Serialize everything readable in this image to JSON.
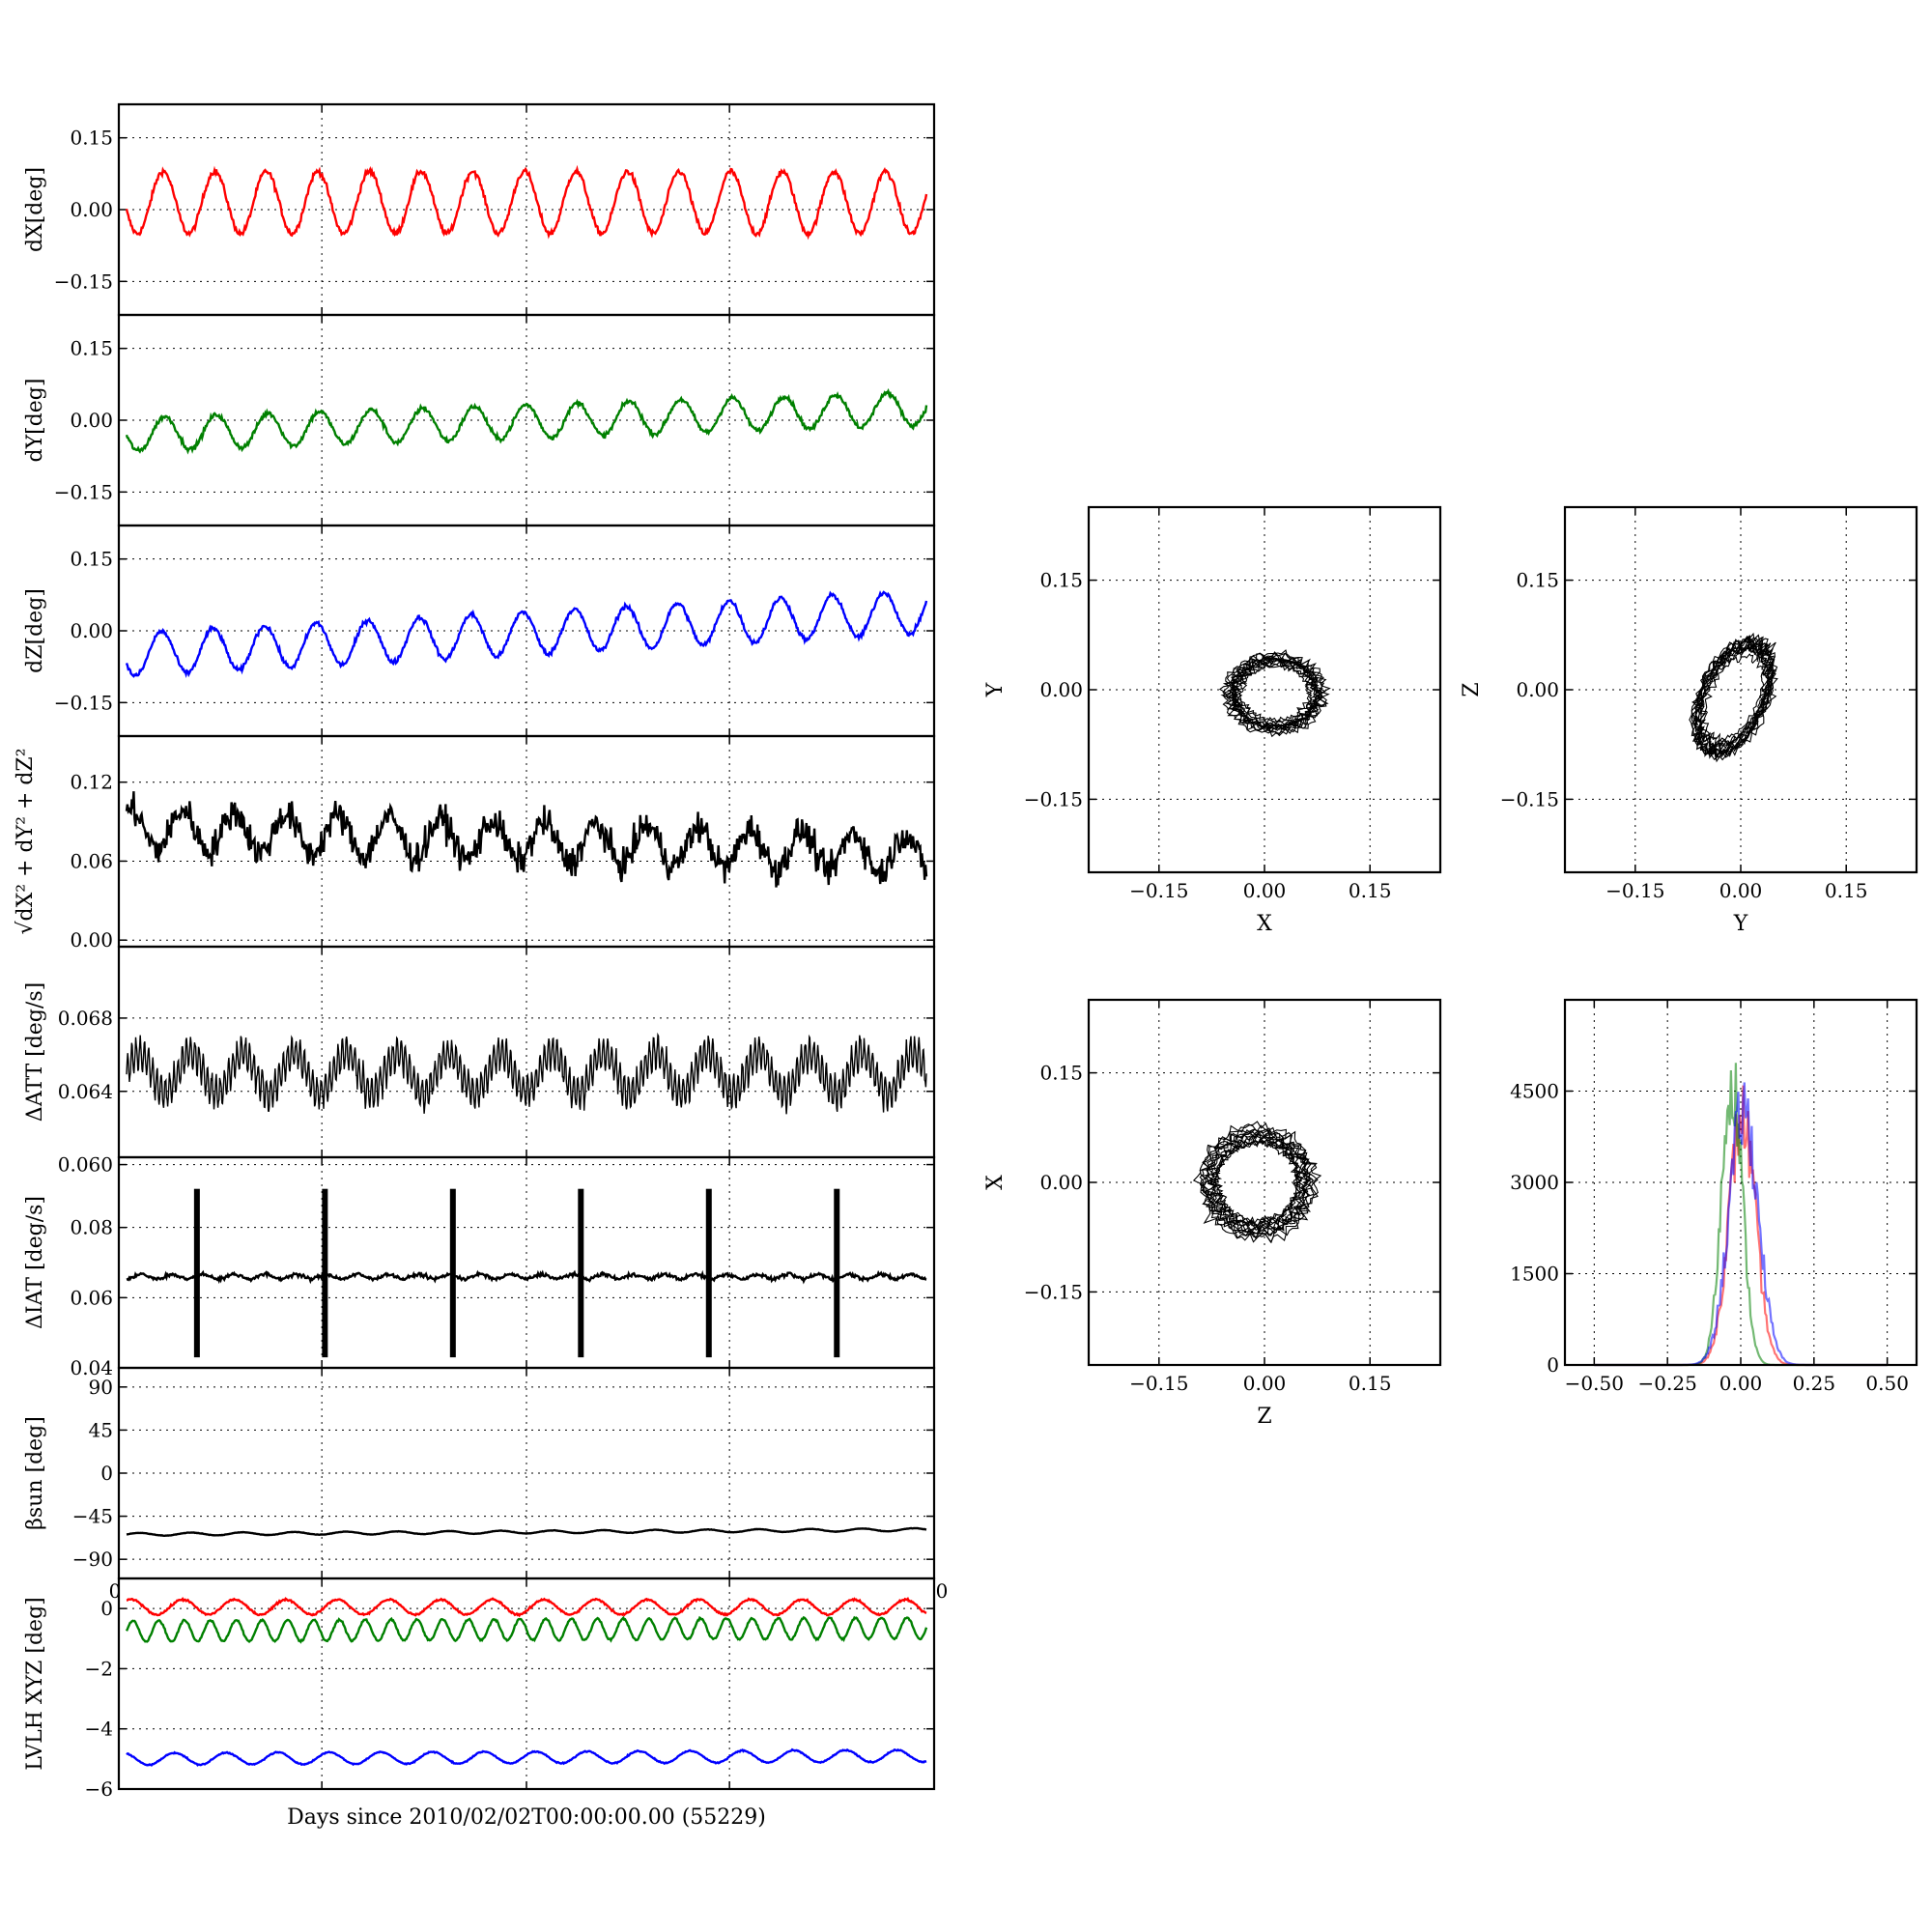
{
  "figure": {
    "xlabel": "Days since 2010/02/02T00:00:00.00 (55229)"
  },
  "colors": {
    "x": "#ff0000",
    "y": "#008000",
    "z": "#0000ff",
    "k": "#000000"
  },
  "chart_data": [
    {
      "type": "line",
      "id": "dX",
      "ylabel": "dX[deg]",
      "ylim": [
        -0.22,
        0.22
      ],
      "yticks": [
        "0.15",
        "0.00",
        "−0.15"
      ],
      "ytick_values": [
        0.15,
        0.0,
        -0.15
      ],
      "grid": true,
      "series": [
        {
          "color": "#ff0000",
          "kind": "sine",
          "cycles": 15.5,
          "offset": 0.015,
          "amp": 0.065,
          "trend": 0.0,
          "noise": 0.006,
          "phase": 3.4
        }
      ]
    },
    {
      "type": "line",
      "id": "dY",
      "ylabel": "dY[deg]",
      "ylim": [
        -0.22,
        0.22
      ],
      "yticks": [
        "0.15",
        "0.00",
        "−0.15"
      ],
      "ytick_values": [
        0.15,
        0.0,
        -0.15
      ],
      "grid": true,
      "series": [
        {
          "color": "#008000",
          "kind": "sine",
          "cycles": 15.5,
          "offset": -0.03,
          "amp": 0.035,
          "trend": 0.055,
          "noise": 0.005,
          "phase": 3.2
        }
      ]
    },
    {
      "type": "line",
      "id": "dZ",
      "ylabel": "dZ[deg]",
      "ylim": [
        -0.22,
        0.22
      ],
      "yticks": [
        "0.15",
        "0.00",
        "−0.15"
      ],
      "ytick_values": [
        0.15,
        0.0,
        -0.15
      ],
      "grid": true,
      "series": [
        {
          "color": "#0000ff",
          "kind": "sine",
          "cycles": 15.5,
          "offset": -0.05,
          "amp": 0.045,
          "trend": 0.09,
          "noise": 0.005,
          "phase": 3.6
        }
      ]
    },
    {
      "type": "line",
      "id": "dR",
      "ylabel": "√dX² + dY² + dZ²",
      "ylim": [
        -0.005,
        0.155
      ],
      "yticks": [
        "0.12",
        "0.06",
        "0.00"
      ],
      "ytick_values": [
        0.12,
        0.06,
        0.0
      ],
      "grid": true,
      "series": [
        {
          "color": "#000000",
          "kind": "sine",
          "cycles": 15.5,
          "offset": 0.085,
          "amp": 0.015,
          "trend": -0.02,
          "noise": 0.012,
          "phase": 1.0
        }
      ]
    },
    {
      "type": "line",
      "id": "dATT",
      "ylabel": "ΔATT [deg/s]",
      "ylim": [
        0.0604,
        0.0719
      ],
      "yticks": [
        "0.068",
        "0.064",
        "0.060"
      ],
      "ytick_values": [
        0.068,
        0.064,
        0.06
      ],
      "grid": true,
      "series": [
        {
          "color": "#000000",
          "kind": "fast",
          "cycles": 15.5,
          "offset": 0.065,
          "amp": 0.0011,
          "fast_amp": 0.001,
          "trend": 0.0,
          "noise": 0.0003,
          "phase": 0.0
        }
      ]
    },
    {
      "type": "line",
      "id": "dIAT",
      "ylabel": "ΔIAT [deg/s]",
      "ylim": [
        0.04,
        0.1
      ],
      "yticks": [
        "0.08",
        "0.06",
        "0.04"
      ],
      "ytick_values": [
        0.08,
        0.06,
        0.04
      ],
      "grid": true,
      "series": [
        {
          "color": "#000000",
          "kind": "saw",
          "cycles": 26,
          "offset": 0.066,
          "amp": 0.0016,
          "trend": 0.0,
          "noise": 0.0005,
          "phase": 0.0,
          "spikes_at": [
            0.088,
            0.248,
            0.408,
            0.568,
            0.728,
            0.888
          ],
          "spike_range": [
            0.043,
            0.091
          ]
        }
      ]
    },
    {
      "type": "line",
      "id": "beta",
      "ylabel": "βsun [deg]",
      "ylim": [
        -110,
        110
      ],
      "yticks": [
        "90",
        "45",
        "0",
        "−45",
        "−90"
      ],
      "ytick_values": [
        90,
        45,
        0,
        -45,
        -90
      ],
      "grid": true,
      "series": [
        {
          "color": "#000000",
          "kind": "sine",
          "cycles": 15.5,
          "offset": -64,
          "amp": 1.5,
          "trend": 5,
          "noise": 0.2,
          "phase": 0.0
        }
      ]
    },
    {
      "type": "line",
      "id": "lvlh",
      "ylabel": "LVLH XYZ [deg]",
      "ylim": [
        -6,
        1
      ],
      "yticks": [
        "0",
        "−2",
        "−4",
        "−6"
      ],
      "ytick_values": [
        0,
        -2,
        -4,
        -6
      ],
      "xticks_bottom": [],
      "xtick_corner_labels": [
        "0",
        "0"
      ],
      "grid": true,
      "series": [
        {
          "color": "#ff0000",
          "kind": "sine",
          "cycles": 15.5,
          "offset": 0.05,
          "amp": 0.25,
          "trend": 0.0,
          "noise": 0.03,
          "phase": 1.0
        },
        {
          "color": "#008000",
          "kind": "sine",
          "cycles": 31,
          "offset": -0.75,
          "amp": 0.35,
          "trend": 0.1,
          "noise": 0.03,
          "phase": 0.0
        },
        {
          "color": "#0000ff",
          "kind": "sine",
          "cycles": 15.5,
          "offset": -5.0,
          "amp": 0.2,
          "trend": 0.1,
          "noise": 0.02,
          "phase": 2.0
        }
      ]
    },
    {
      "type": "scatter",
      "id": "XY",
      "xlabel": "X",
      "ylabel": "Y",
      "xlim": [
        -0.25,
        0.25
      ],
      "ylim": [
        -0.25,
        0.25
      ],
      "xticks": [
        "−0.15",
        "0.00",
        "0.15"
      ],
      "yticks": [
        "0.15",
        "0.00",
        "−0.15"
      ],
      "tick_values": [
        -0.15,
        0.0,
        0.15
      ],
      "grid": true,
      "color": "#000000",
      "cloud": {
        "cx": 0.015,
        "cy": -0.005,
        "rx": 0.065,
        "ry": 0.05,
        "tilt": 0.0
      }
    },
    {
      "type": "scatter",
      "id": "YZ",
      "xlabel": "Y",
      "ylabel": "Z",
      "xlim": [
        -0.25,
        0.25
      ],
      "ylim": [
        -0.25,
        0.25
      ],
      "xticks": [
        "−0.15",
        "0.00",
        "0.15"
      ],
      "yticks": [
        "0.15",
        "0.00",
        "−0.15"
      ],
      "tick_values": [
        -0.15,
        0.0,
        0.15
      ],
      "grid": true,
      "color": "#000000",
      "cloud": {
        "cx": -0.01,
        "cy": -0.01,
        "rx": 0.045,
        "ry": 0.08,
        "tilt": -0.45
      }
    },
    {
      "type": "scatter",
      "id": "ZX",
      "xlabel": "Z",
      "ylabel": "X",
      "xlim": [
        -0.25,
        0.25
      ],
      "ylim": [
        -0.25,
        0.25
      ],
      "xticks": [
        "−0.15",
        "0.00",
        "0.15"
      ],
      "yticks": [
        "0.15",
        "0.00",
        "−0.15"
      ],
      "tick_values": [
        -0.15,
        0.0,
        0.15
      ],
      "grid": true,
      "color": "#000000",
      "cloud": {
        "cx": -0.01,
        "cy": 0.0,
        "rx": 0.075,
        "ry": 0.07,
        "tilt": 0.0
      }
    },
    {
      "type": "histogram",
      "id": "hist",
      "xlim": [
        -0.6,
        0.6
      ],
      "ylim": [
        0,
        6000
      ],
      "xticks": [
        "−0.50",
        "−0.25",
        "0.00",
        "0.25",
        "0.50"
      ],
      "xtick_values": [
        -0.5,
        -0.25,
        0.0,
        0.25,
        0.5
      ],
      "yticks": [
        "4500",
        "3000",
        "1500",
        "0"
      ],
      "ytick_values": [
        4500,
        3000,
        1500,
        0
      ],
      "grid": true,
      "series": [
        {
          "color": "#ff0000",
          "center": 0.005,
          "width": 0.045,
          "peak": 4200
        },
        {
          "color": "#008000",
          "center": -0.03,
          "width": 0.035,
          "peak": 4900
        },
        {
          "color": "#0000ff",
          "center": 0.01,
          "width": 0.05,
          "peak": 4300
        }
      ]
    }
  ]
}
